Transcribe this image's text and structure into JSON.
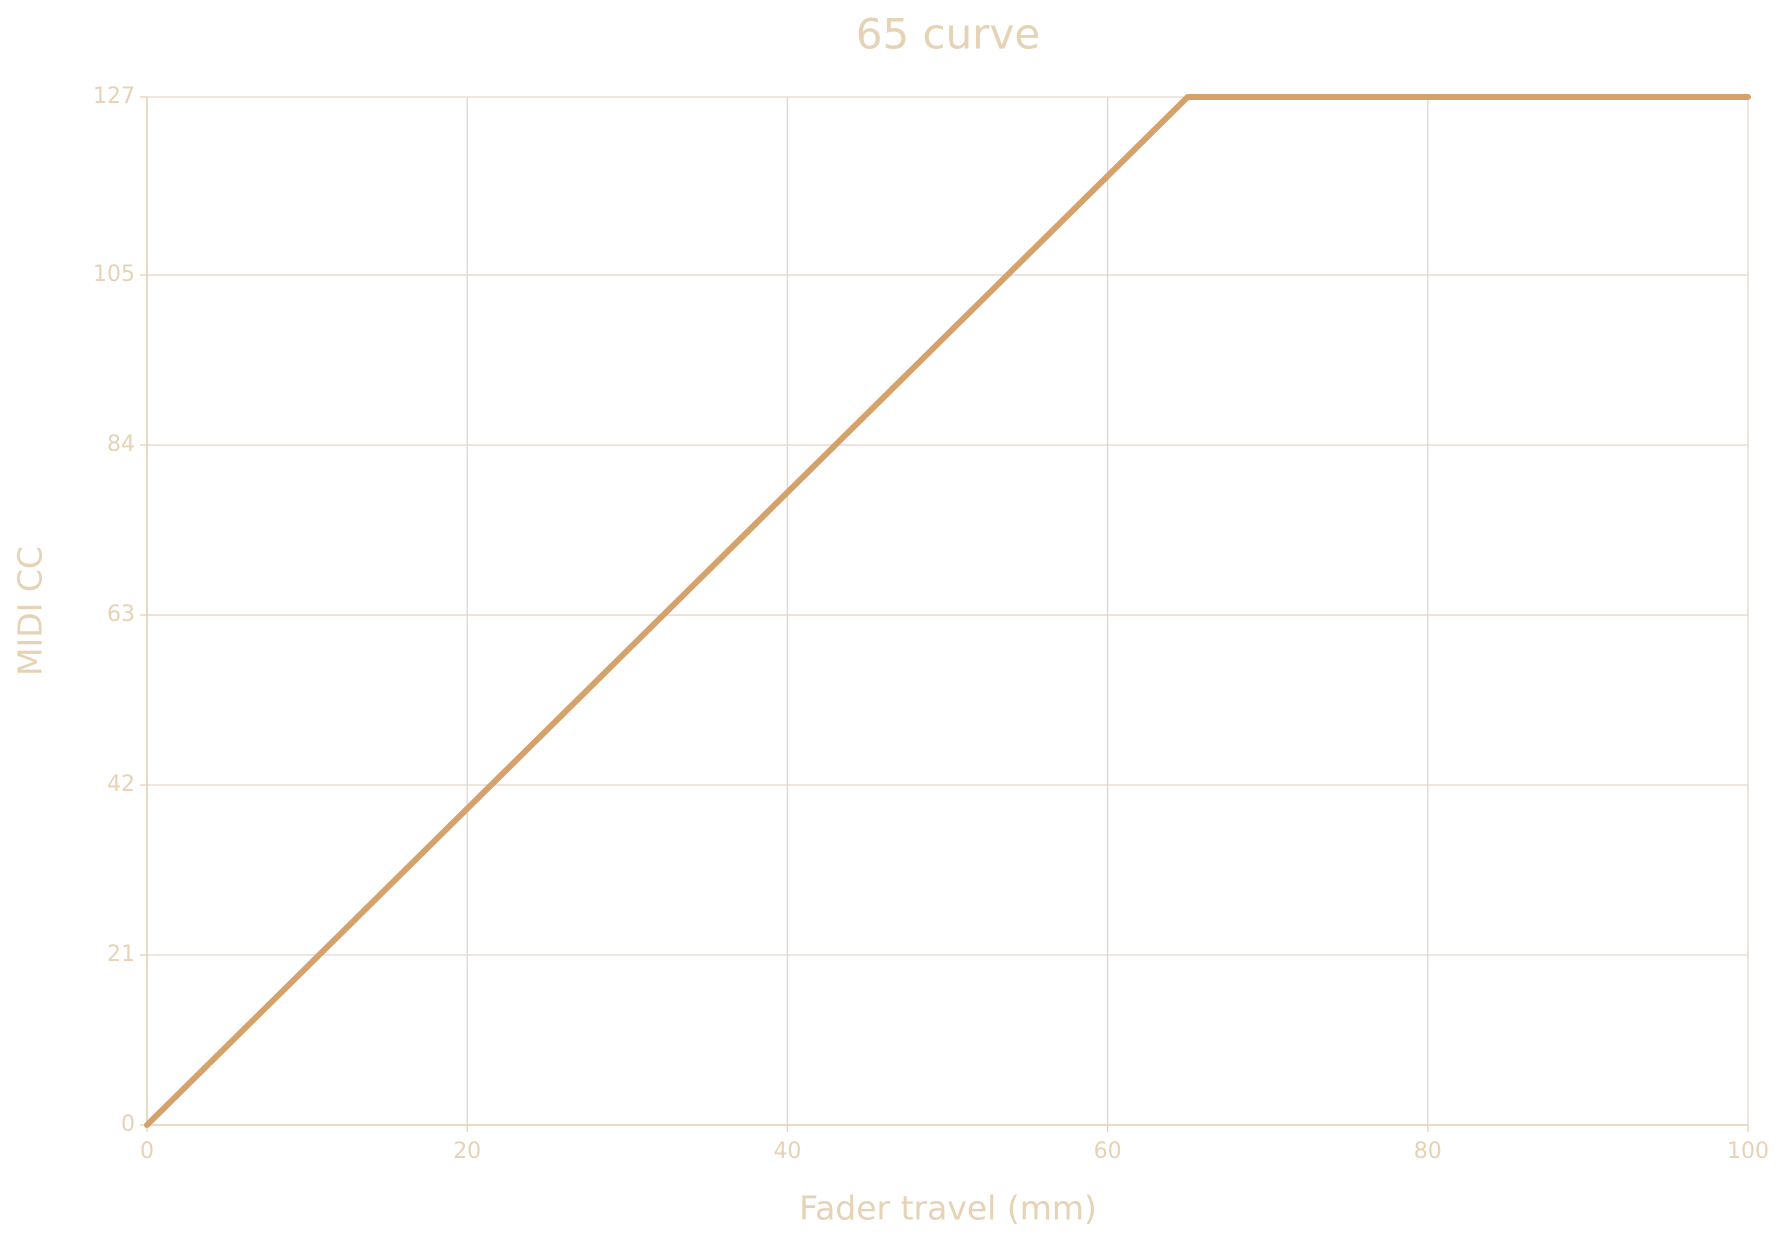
{
  "chart_data": {
    "type": "line",
    "title": "65 curve",
    "x_label": "Fader travel (mm)",
    "y_label": "MIDI CC",
    "x": [
      0,
      65,
      100
    ],
    "series": [
      {
        "name": "65 curve",
        "color": "#d4a26a",
        "values": [
          0,
          127,
          127
        ]
      }
    ],
    "xlim": [
      0,
      100
    ],
    "xticks": [
      0,
      20,
      40,
      60,
      80,
      100
    ],
    "ylim": [
      0,
      127
    ],
    "yticks": [
      0,
      21,
      42,
      63,
      84,
      105,
      127
    ],
    "grid": true
  }
}
